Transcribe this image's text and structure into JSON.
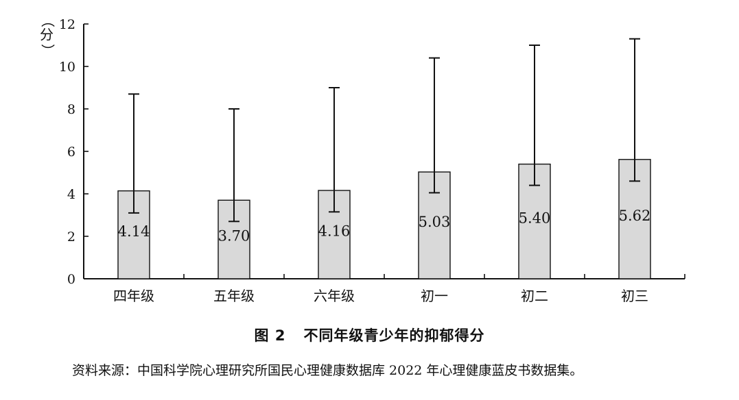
{
  "chart_data": {
    "type": "bar",
    "ylabel": "（分）",
    "ylim": [
      0,
      12
    ],
    "yticks": [
      0,
      2,
      4,
      6,
      8,
      10,
      12
    ],
    "categories": [
      "四年级",
      "五年级",
      "六年级",
      "初一",
      "初二",
      "初三"
    ],
    "values": [
      4.14,
      3.7,
      4.16,
      5.03,
      5.4,
      5.62
    ],
    "value_labels": [
      "4.14",
      "3.70",
      "4.16",
      "5.03",
      "5.40",
      "5.62"
    ],
    "error_upper": [
      8.7,
      8.0,
      9.0,
      10.4,
      11.0,
      11.3
    ],
    "error_lower": [
      3.1,
      2.7,
      3.15,
      4.05,
      4.4,
      4.6
    ],
    "bar_color": "#d9d9d9",
    "grid": false
  },
  "caption": {
    "figure_number": "图 2",
    "title": "不同年级青少年的抑郁得分"
  },
  "source": "资料来源：中国科学院心理研究所国民心理健康数据库 2022 年心理健康蓝皮书数据集。"
}
